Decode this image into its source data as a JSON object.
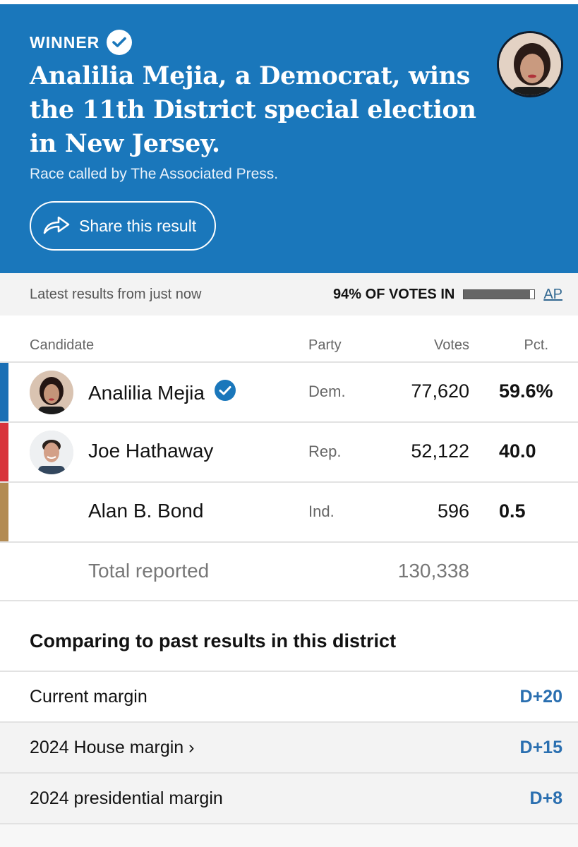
{
  "banner": {
    "winner_label": "WINNER",
    "headline": "Analilia Mejia, a Democrat, wins the 11th District special election in New Jersey.",
    "subline": "Race called by The Associated Press.",
    "share_label": "Share this result",
    "bg_color": "#1a77bb"
  },
  "status": {
    "latest": "Latest results from just now",
    "votes_in": "94% OF VOTES IN",
    "progress": 0.94,
    "source": "AP"
  },
  "table": {
    "headers": {
      "candidate": "Candidate",
      "party": "Party",
      "votes": "Votes",
      "pct": "Pct."
    },
    "rows": [
      {
        "name": "Analilia Mejia",
        "party": "Dem.",
        "votes": "77,620",
        "pct": "59.6%",
        "winner": true,
        "color": "#1a6fb5"
      },
      {
        "name": "Joe Hathaway",
        "party": "Rep.",
        "votes": "52,122",
        "pct": "40.0",
        "winner": false,
        "color": "#d8333b"
      },
      {
        "name": "Alan B. Bond",
        "party": "Ind.",
        "votes": "596",
        "pct": "0.5",
        "winner": false,
        "color": "#b38b52"
      }
    ],
    "total_label": "Total reported",
    "total_votes": "130,338"
  },
  "compare": {
    "title": "Comparing to past results in this district",
    "rows": [
      {
        "label": "Current margin",
        "value": "D+20"
      },
      {
        "label": "2024 House margin ›",
        "value": "D+15"
      },
      {
        "label": "2024 presidential margin",
        "value": "D+8"
      }
    ]
  }
}
